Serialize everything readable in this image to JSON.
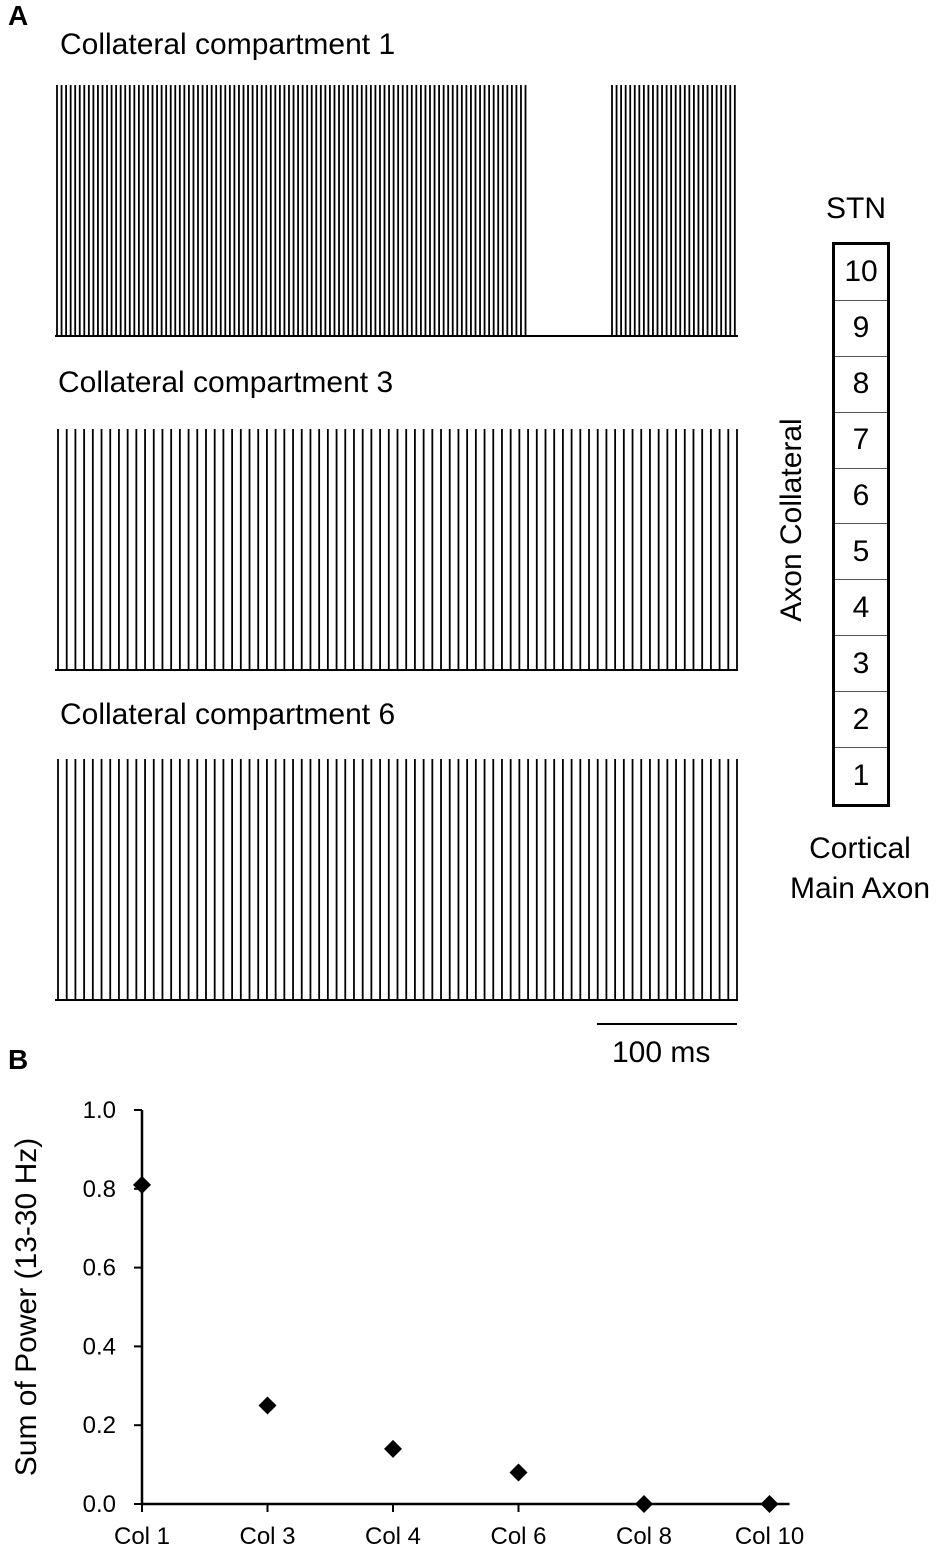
{
  "panel_a": {
    "letter": "A",
    "traces": [
      {
        "title": "Collateral compartment 1",
        "spike_count": 132,
        "gap": true
      },
      {
        "title": "Collateral compartment 3",
        "spike_count": 79,
        "gap": false
      },
      {
        "title": "Collateral compartment 6",
        "spike_count": 79,
        "gap": false
      }
    ],
    "scale_bar": "100 ms",
    "schematic": {
      "top_label": "STN",
      "side_label": "Axon Collateral",
      "cells": [
        "10",
        "9",
        "8",
        "7",
        "6",
        "5",
        "4",
        "3",
        "2",
        "1"
      ],
      "bottom_label_1": "Cortical",
      "bottom_label_2": "Main Axon"
    }
  },
  "panel_b": {
    "letter": "B"
  },
  "chart_data": {
    "type": "scatter",
    "title": "",
    "xlabel": "",
    "ylabel": "Sum of Power (13-30 Hz)",
    "categories": [
      "Col 1",
      "Col 3",
      "Col 4",
      "Col 6",
      "Col 8",
      "Col 10"
    ],
    "values": [
      0.81,
      0.25,
      0.14,
      0.08,
      0.0,
      0.0
    ],
    "ylim": [
      0.0,
      1.0
    ],
    "yticks": [
      "0.0",
      "0.2",
      "0.4",
      "0.6",
      "0.8",
      "1.0"
    ],
    "marker": "diamond",
    "color": "#000000",
    "grid": false,
    "legend": "none"
  }
}
